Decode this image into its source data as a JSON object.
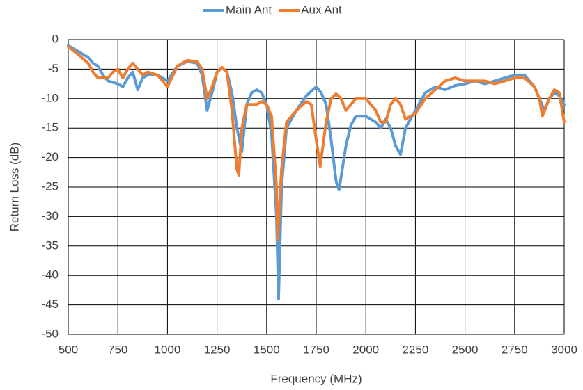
{
  "chart_data": {
    "type": "line",
    "xlabel": "Frequency (MHz)",
    "ylabel": "Return Loss (dB)",
    "xlim": [
      500,
      3000
    ],
    "xticks": [
      500,
      750,
      1000,
      1250,
      1500,
      1750,
      2000,
      2250,
      2500,
      2750,
      3000
    ],
    "ylim": [
      -50,
      0
    ],
    "yticks": [
      0,
      -5,
      -10,
      -15,
      -20,
      -25,
      -30,
      -35,
      -40,
      -45,
      -50
    ],
    "grid": true,
    "legend": "top",
    "series": [
      {
        "name": "Main Ant",
        "color": "#5b9bd5",
        "x": [
          500,
          550,
          600,
          625,
          650,
          675,
          700,
          750,
          775,
          800,
          825,
          850,
          875,
          900,
          950,
          1000,
          1050,
          1100,
          1150,
          1175,
          1200,
          1225,
          1250,
          1275,
          1300,
          1325,
          1350,
          1375,
          1400,
          1425,
          1450,
          1475,
          1500,
          1525,
          1550,
          1560,
          1575,
          1600,
          1650,
          1700,
          1750,
          1775,
          1800,
          1825,
          1850,
          1865,
          1900,
          1925,
          1950,
          2000,
          2050,
          2075,
          2100,
          2125,
          2150,
          2175,
          2200,
          2250,
          2300,
          2350,
          2400,
          2450,
          2500,
          2550,
          2600,
          2650,
          2700,
          2750,
          2800,
          2850,
          2875,
          2900,
          2925,
          2950,
          2975,
          3000
        ],
        "values": [
          -1,
          -2,
          -3,
          -4,
          -4.5,
          -6,
          -7,
          -7.5,
          -8,
          -6.5,
          -5.5,
          -8.5,
          -6.5,
          -6,
          -6,
          -7,
          -4.5,
          -3.7,
          -4,
          -6,
          -12,
          -9,
          -5.5,
          -4.8,
          -5.5,
          -9,
          -15,
          -19,
          -11,
          -9,
          -8.5,
          -9,
          -11,
          -16,
          -30,
          -44,
          -25,
          -15,
          -12,
          -9.5,
          -8,
          -9,
          -11,
          -17,
          -24,
          -25.5,
          -18,
          -14.5,
          -13,
          -13,
          -14,
          -15,
          -13.5,
          -15,
          -18,
          -19.5,
          -15,
          -12,
          -9,
          -8,
          -8.5,
          -7.8,
          -7.5,
          -7,
          -7.5,
          -7,
          -6.5,
          -6,
          -6,
          -8,
          -10,
          -12,
          -10,
          -9,
          -9.5,
          -11
        ]
      },
      {
        "name": "Aux Ant",
        "color": "#ed7d31",
        "x": [
          500,
          550,
          600,
          625,
          650,
          700,
          725,
          750,
          775,
          800,
          825,
          850,
          875,
          900,
          950,
          975,
          1000,
          1050,
          1100,
          1150,
          1175,
          1200,
          1225,
          1250,
          1275,
          1300,
          1325,
          1350,
          1360,
          1375,
          1400,
          1450,
          1475,
          1500,
          1525,
          1550,
          1555,
          1575,
          1600,
          1650,
          1700,
          1725,
          1750,
          1770,
          1800,
          1825,
          1850,
          1875,
          1900,
          1950,
          2000,
          2050,
          2075,
          2100,
          2125,
          2150,
          2175,
          2200,
          2250,
          2300,
          2350,
          2400,
          2450,
          2500,
          2550,
          2600,
          2650,
          2700,
          2750,
          2800,
          2850,
          2875,
          2890,
          2925,
          2950,
          2975,
          3000
        ],
        "values": [
          -1.2,
          -2.5,
          -4,
          -5.5,
          -6.5,
          -6.5,
          -5.5,
          -5,
          -6.5,
          -5,
          -4,
          -5,
          -6,
          -5.5,
          -6,
          -7,
          -8,
          -4.5,
          -3.5,
          -3.8,
          -5,
          -10,
          -8,
          -5.5,
          -4.7,
          -5.5,
          -12,
          -22,
          -23,
          -15,
          -11,
          -11,
          -10.5,
          -11,
          -13,
          -25,
          -34,
          -22,
          -14,
          -12,
          -10.5,
          -11,
          -17,
          -21.5,
          -14,
          -10,
          -9.2,
          -10,
          -12,
          -10,
          -10,
          -12,
          -14,
          -14,
          -11,
          -10,
          -11,
          -13.5,
          -12.5,
          -10,
          -8.5,
          -7,
          -6.5,
          -7,
          -7,
          -7,
          -7.5,
          -7,
          -6.5,
          -6.5,
          -8,
          -10,
          -13,
          -10,
          -8.5,
          -9,
          -14
        ]
      }
    ]
  }
}
